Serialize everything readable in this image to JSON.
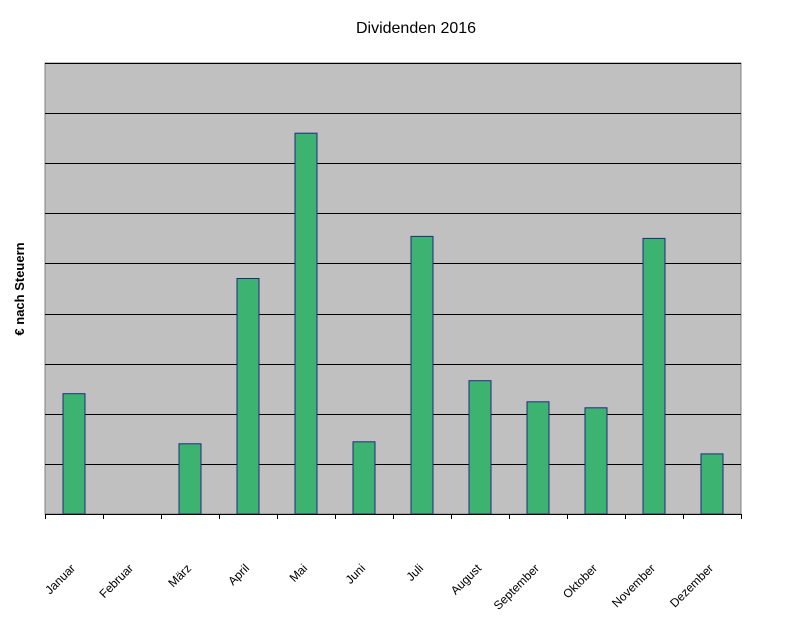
{
  "chart_data": {
    "type": "bar",
    "title": "Dividenden 2016",
    "xlabel": "",
    "ylabel": "€ nach Steuern",
    "categories": [
      "Januar",
      "Februar",
      "März",
      "April",
      "Mai",
      "Juni",
      "Juli",
      "August",
      "September",
      "Oktober",
      "November",
      "Dezember"
    ],
    "values": [
      1.2,
      0,
      0.7,
      2.35,
      3.8,
      0.72,
      2.77,
      1.33,
      1.12,
      1.06,
      2.75,
      0.6
    ],
    "ylim": [
      0,
      4.5
    ],
    "grid": true,
    "legend": "none",
    "colors": {
      "bar_fill": "#3cb371",
      "bar_stroke": "#1f2a80",
      "plot_background": "#c0c0c0",
      "gridline": "#000000"
    }
  }
}
